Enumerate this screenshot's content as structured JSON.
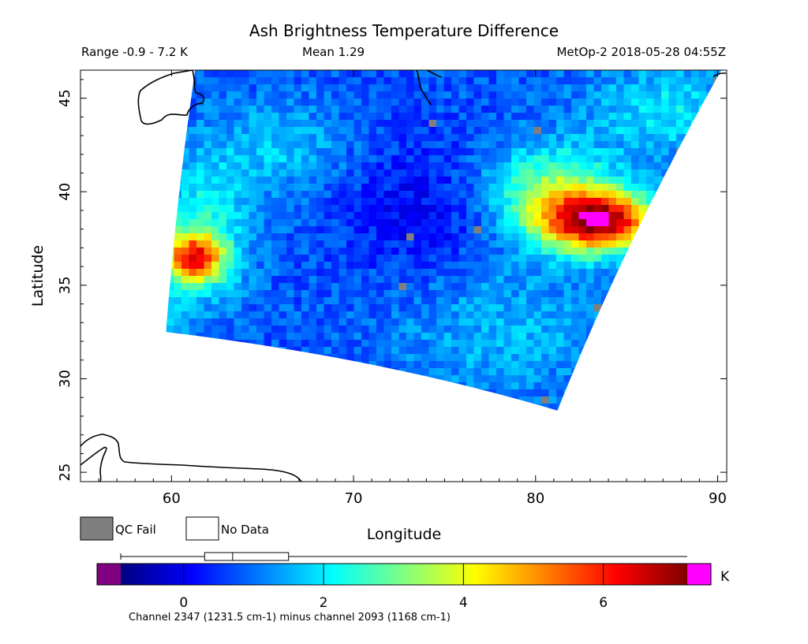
{
  "chart_data": {
    "type": "heatmap",
    "title": "Ash Brightness Temperature Difference",
    "subtitle_left": "Range -0.9 - 7.2 K",
    "subtitle_center": "Mean 1.29",
    "subtitle_right": "MetOp-2 2018-05-28 04:55Z",
    "xlabel": "Longitude",
    "ylabel": "Latitude",
    "xlim": [
      55,
      90.5
    ],
    "ylim": [
      24.5,
      46.5
    ],
    "xticks": [
      {
        "value": 60,
        "label": "60"
      },
      {
        "value": 70,
        "label": "70"
      },
      {
        "value": 80,
        "label": "80"
      },
      {
        "value": 90,
        "label": "90"
      }
    ],
    "yticks": [
      {
        "value": 25,
        "label": "25"
      },
      {
        "value": 30,
        "label": "30"
      },
      {
        "value": 35,
        "label": "35"
      },
      {
        "value": 40,
        "label": "40"
      },
      {
        "value": 45,
        "label": "45"
      }
    ],
    "swath_corners": {
      "top_left": [
        61.3,
        46.5
      ],
      "top_right": [
        90.2,
        46.5
      ],
      "bottom_right": [
        81.2,
        28.3
      ],
      "bottom_left": [
        59.7,
        32.5
      ]
    },
    "features": [
      {
        "name": "high BTD plume",
        "lon": 83.0,
        "lat": 38.8,
        "value": 6.5
      },
      {
        "name": "moderate BTD west edge",
        "lon": 61.0,
        "lat": 36.5,
        "value": 5.0
      },
      {
        "name": "low BTD core",
        "lon": 73.5,
        "lat": 39.0,
        "value": 0.0
      }
    ],
    "legend": {
      "qc_fail_label": "QC Fail",
      "qc_fail_color": "#7f7f7f",
      "no_data_label": "No Data",
      "no_data_color": "#ffffff"
    },
    "colorbar": {
      "min": -0.9,
      "max": 7.2,
      "unit": "K",
      "ticks": [
        0,
        2,
        4,
        6
      ],
      "tick_labels": [
        "0",
        "2",
        "4",
        "6"
      ],
      "under_color": "#800080",
      "over_color": "#ff00ff",
      "colormap": [
        "#00007f",
        "#0000ff",
        "#0080ff",
        "#00ffff",
        "#80ff80",
        "#ffff00",
        "#ff8000",
        "#ff0000",
        "#7f0000"
      ],
      "boxplot": {
        "whisker_low": -0.9,
        "q1": 0.3,
        "median": 0.7,
        "q3": 1.5,
        "whisker_high": 7.2
      }
    },
    "caption": "Channel 2347 (1231.5 cm-1) minus channel 2093 (1168 cm-1)"
  }
}
